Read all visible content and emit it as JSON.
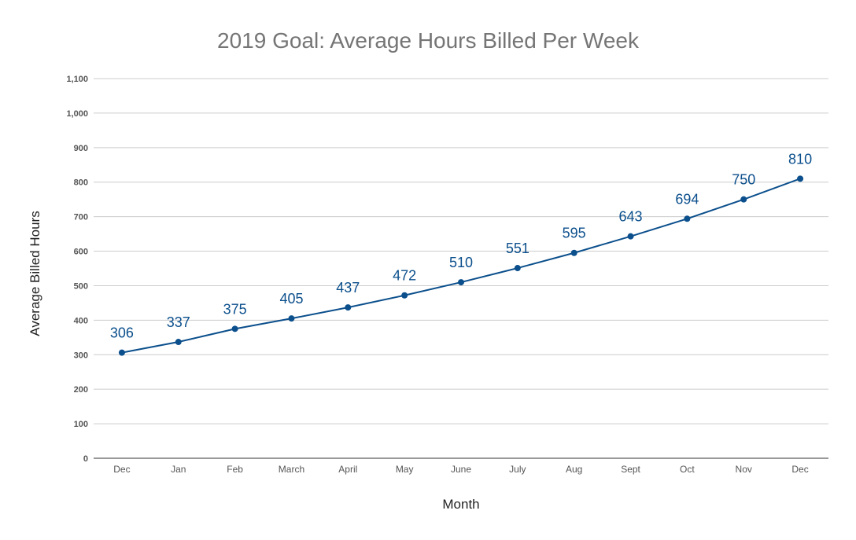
{
  "chart_data": {
    "type": "line",
    "title": "2019 Goal: Average Hours Billed Per Week",
    "xlabel": "Month",
    "ylabel": "Average Billed Hours",
    "categories": [
      "Dec",
      "Jan",
      "Feb",
      "March",
      "April",
      "May",
      "June",
      "July",
      "Aug",
      "Sept",
      "Oct",
      "Nov",
      "Dec"
    ],
    "series": [
      {
        "name": "Average Billed Hours",
        "values": [
          306,
          337,
          375,
          405,
          437,
          472,
          510,
          551,
          595,
          643,
          694,
          750,
          810
        ],
        "color": "#0b4f8c"
      }
    ],
    "ylim": [
      0,
      1100
    ],
    "yticks": [
      0,
      100,
      200,
      300,
      400,
      500,
      600,
      700,
      800,
      900,
      1000,
      1100
    ],
    "ytick_labels": [
      "0",
      "100",
      "200",
      "300",
      "400",
      "500",
      "600",
      "700",
      "800",
      "900",
      "1,000",
      "1,100"
    ],
    "grid": true,
    "data_labels": true
  }
}
